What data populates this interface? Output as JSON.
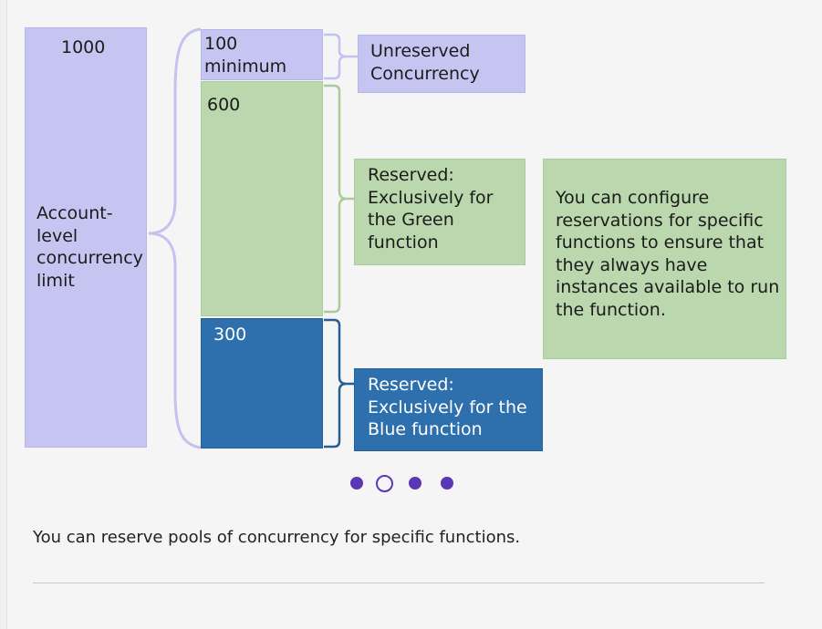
{
  "diagram": {
    "account_limit": {
      "value": "1000",
      "label": "Account-\nlevel\nconcurrency\nlimit"
    },
    "segments": {
      "unreserved": {
        "value": "100\nminimum"
      },
      "green": {
        "value": "600"
      },
      "blue": {
        "value": "300"
      }
    },
    "callouts": {
      "unreserved": "Unreserved\nConcurrency",
      "green": "Reserved:\nExclusively for\nthe Green\nfunction",
      "blue": "Reserved:\nExclusively for the\nBlue function",
      "note": "You can configure\nreservations for specific\nfunctions to ensure that\nthey always have\ninstances available to run\nthe function."
    },
    "colors": {
      "lavender": "#c6c5f2",
      "green": "#bad7ae",
      "blue": "#2e6fad",
      "accent": "#5a37b5"
    }
  },
  "carousel": {
    "slide_count": 4,
    "active_index": 1
  },
  "caption": "You can reserve pools of concurrency for specific functions."
}
